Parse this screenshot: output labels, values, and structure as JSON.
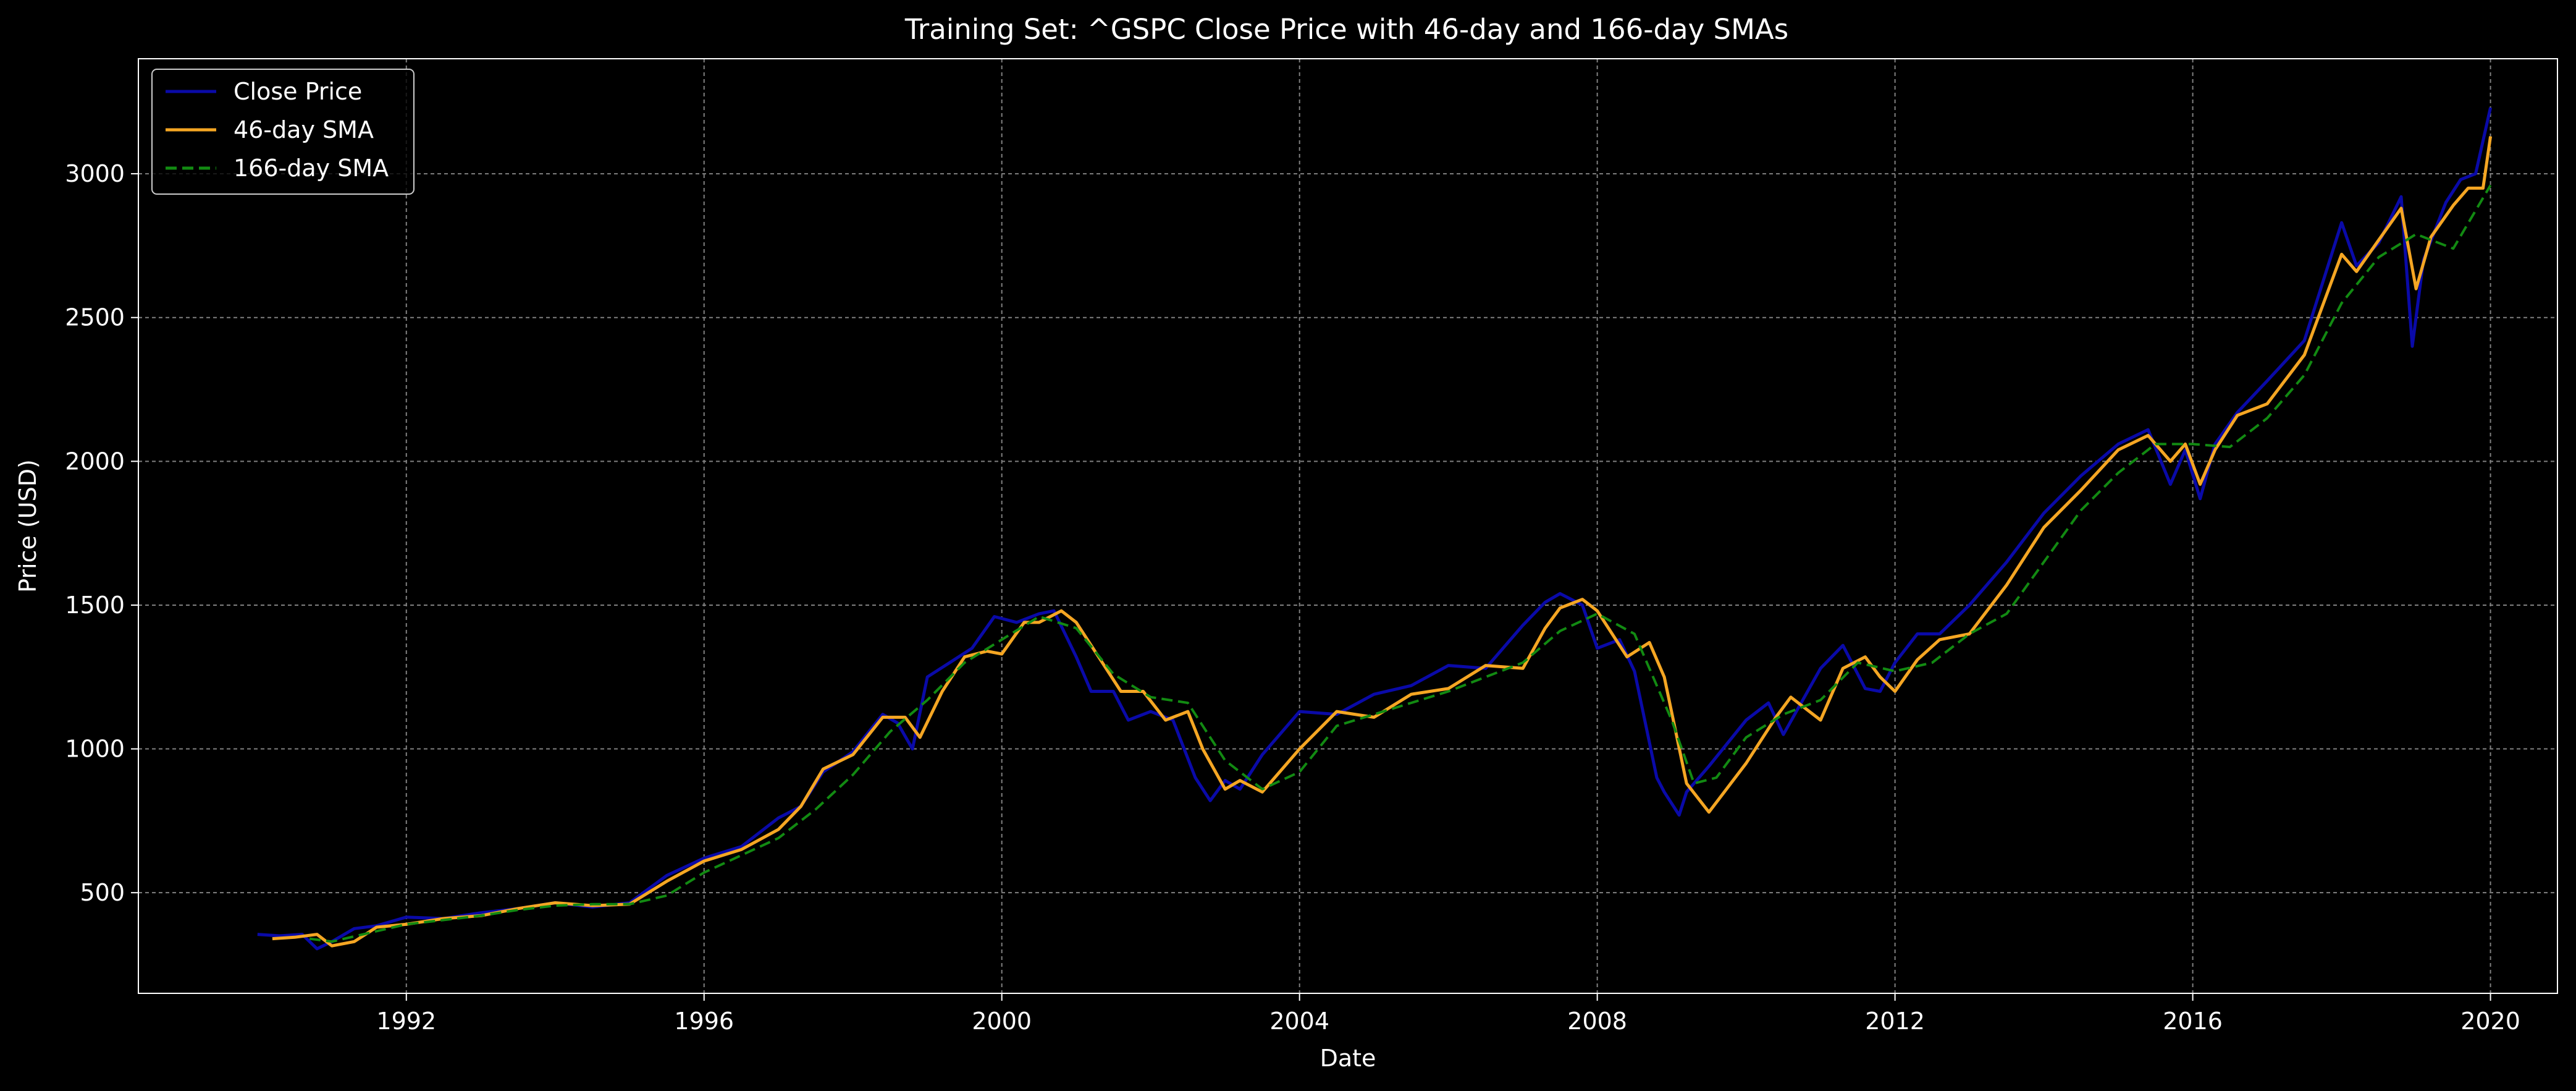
{
  "chart_data": {
    "type": "line",
    "title": "Training Set: ^GSPC Close Price with 46-day and 166-day SMAs",
    "xlabel": "Date",
    "ylabel": "Price (USD)",
    "x_ticks": [
      "1992",
      "1996",
      "2000",
      "2004",
      "2008",
      "2012",
      "2016",
      "2020"
    ],
    "y_ticks": [
      "500",
      "1000",
      "1500",
      "2000",
      "2500",
      "3000"
    ],
    "xlim": [
      1988.4,
      2020.9
    ],
    "ylim": [
      150,
      3400
    ],
    "grid": true,
    "legend_position": "top-left",
    "colors": {
      "background": "#000000",
      "text": "#ffffff",
      "grid": "#808080",
      "close": "#0a0aa8",
      "sma46": "#f5a623",
      "sma166": "#128a12"
    },
    "series": [
      {
        "name": "Close Price",
        "style": "solid",
        "x": [
          1990.0,
          1990.3,
          1990.6,
          1990.8,
          1991.0,
          1991.3,
          1991.6,
          1992.0,
          1992.5,
          1993.0,
          1993.5,
          1994.0,
          1994.5,
          1995.0,
          1995.5,
          1996.0,
          1996.5,
          1997.0,
          1997.3,
          1997.6,
          1998.0,
          1998.4,
          1998.6,
          1998.8,
          1999.0,
          1999.3,
          1999.6,
          1999.9,
          2000.2,
          2000.5,
          2000.7,
          2001.0,
          2001.2,
          2001.5,
          2001.7,
          2002.0,
          2002.3,
          2002.6,
          2002.8,
          2003.0,
          2003.2,
          2003.5,
          2004.0,
          2004.5,
          2005.0,
          2005.5,
          2006.0,
          2006.5,
          2007.0,
          2007.3,
          2007.5,
          2007.8,
          2008.0,
          2008.3,
          2008.5,
          2008.8,
          2008.9,
          2009.1,
          2009.2,
          2009.5,
          2010.0,
          2010.3,
          2010.5,
          2011.0,
          2011.3,
          2011.6,
          2011.8,
          2012.0,
          2012.3,
          2012.6,
          2013.0,
          2013.5,
          2014.0,
          2014.5,
          2015.0,
          2015.4,
          2015.7,
          2015.9,
          2016.1,
          2016.3,
          2016.6,
          2017.0,
          2017.5,
          2018.0,
          2018.2,
          2018.5,
          2018.8,
          2018.95,
          2019.1,
          2019.4,
          2019.6,
          2019.8,
          2020.0
        ],
        "y": [
          355,
          350,
          355,
          305,
          330,
          375,
          385,
          415,
          410,
          430,
          445,
          465,
          450,
          465,
          560,
          620,
          660,
          760,
          800,
          920,
          990,
          1120,
          1090,
          1000,
          1250,
          1300,
          1350,
          1460,
          1440,
          1470,
          1480,
          1320,
          1200,
          1200,
          1100,
          1130,
          1100,
          900,
          820,
          890,
          860,
          980,
          1130,
          1120,
          1190,
          1220,
          1290,
          1280,
          1430,
          1510,
          1540,
          1500,
          1350,
          1380,
          1270,
          900,
          850,
          770,
          850,
          940,
          1100,
          1160,
          1050,
          1280,
          1360,
          1210,
          1200,
          1300,
          1400,
          1400,
          1500,
          1650,
          1820,
          1950,
          2060,
          2110,
          1920,
          2040,
          1870,
          2060,
          2170,
          2280,
          2420,
          2830,
          2680,
          2760,
          2920,
          2400,
          2700,
          2900,
          2980,
          3000,
          3230
        ]
      },
      {
        "name": "46-day SMA",
        "style": "solid",
        "x": [
          1990.2,
          1990.5,
          1990.8,
          1991.0,
          1991.3,
          1991.6,
          1992.0,
          1992.5,
          1993.0,
          1993.5,
          1994.0,
          1994.5,
          1995.0,
          1995.5,
          1996.0,
          1996.5,
          1997.0,
          1997.3,
          1997.6,
          1998.0,
          1998.4,
          1998.7,
          1998.9,
          1999.2,
          1999.5,
          1999.8,
          2000.0,
          2000.3,
          2000.5,
          2000.8,
          2001.0,
          2001.3,
          2001.6,
          2001.9,
          2002.2,
          2002.5,
          2002.7,
          2003.0,
          2003.2,
          2003.5,
          2004.0,
          2004.5,
          2005.0,
          2005.5,
          2006.0,
          2006.5,
          2007.0,
          2007.3,
          2007.5,
          2007.8,
          2008.0,
          2008.4,
          2008.7,
          2008.9,
          2009.2,
          2009.5,
          2010.0,
          2010.4,
          2010.6,
          2011.0,
          2011.3,
          2011.6,
          2011.8,
          2012.0,
          2012.3,
          2012.6,
          2013.0,
          2013.5,
          2014.0,
          2014.5,
          2015.0,
          2015.4,
          2015.7,
          2015.9,
          2016.1,
          2016.3,
          2016.6,
          2017.0,
          2017.5,
          2018.0,
          2018.2,
          2018.5,
          2018.8,
          2019.0,
          2019.2,
          2019.5,
          2019.7,
          2019.9,
          2020.0
        ],
        "y": [
          340,
          345,
          355,
          315,
          330,
          380,
          390,
          410,
          420,
          445,
          465,
          455,
          460,
          540,
          610,
          650,
          720,
          800,
          930,
          980,
          1110,
          1110,
          1040,
          1200,
          1320,
          1340,
          1330,
          1440,
          1440,
          1480,
          1440,
          1320,
          1200,
          1200,
          1100,
          1130,
          1000,
          860,
          890,
          850,
          1000,
          1130,
          1110,
          1190,
          1210,
          1290,
          1280,
          1420,
          1490,
          1520,
          1480,
          1320,
          1370,
          1250,
          880,
          780,
          950,
          1110,
          1180,
          1100,
          1280,
          1320,
          1250,
          1200,
          1310,
          1380,
          1400,
          1570,
          1770,
          1900,
          2040,
          2090,
          2000,
          2060,
          1920,
          2040,
          2160,
          2200,
          2370,
          2720,
          2660,
          2770,
          2880,
          2600,
          2780,
          2890,
          2950,
          2950,
          3130
        ]
      },
      {
        "name": "166-day SMA",
        "style": "dashed",
        "x": [
          1990.7,
          1991.0,
          1991.5,
          1992.0,
          1992.5,
          1993.0,
          1993.5,
          1994.0,
          1994.5,
          1995.0,
          1995.5,
          1996.0,
          1996.5,
          1997.0,
          1997.5,
          1998.0,
          1998.5,
          1999.0,
          1999.5,
          2000.0,
          2000.5,
          2001.0,
          2001.5,
          2002.0,
          2002.5,
          2003.0,
          2003.5,
          2004.0,
          2004.5,
          2005.0,
          2005.5,
          2006.0,
          2006.5,
          2007.0,
          2007.5,
          2008.0,
          2008.5,
          2009.0,
          2009.3,
          2009.6,
          2010.0,
          2010.5,
          2011.0,
          2011.5,
          2012.0,
          2012.5,
          2013.0,
          2013.5,
          2014.0,
          2014.5,
          2015.0,
          2015.5,
          2016.0,
          2016.5,
          2017.0,
          2017.5,
          2018.0,
          2018.5,
          2019.0,
          2019.5,
          2020.0
        ],
        "y": [
          340,
          330,
          360,
          390,
          405,
          420,
          440,
          455,
          460,
          460,
          490,
          570,
          630,
          690,
          790,
          910,
          1060,
          1170,
          1300,
          1380,
          1460,
          1420,
          1260,
          1180,
          1160,
          960,
          860,
          920,
          1080,
          1120,
          1160,
          1200,
          1250,
          1300,
          1410,
          1470,
          1400,
          1100,
          880,
          900,
          1040,
          1120,
          1170,
          1300,
          1270,
          1300,
          1400,
          1470,
          1650,
          1830,
          1960,
          2060,
          2060,
          2050,
          2150,
          2300,
          2550,
          2710,
          2790,
          2740,
          2960
        ]
      }
    ]
  }
}
